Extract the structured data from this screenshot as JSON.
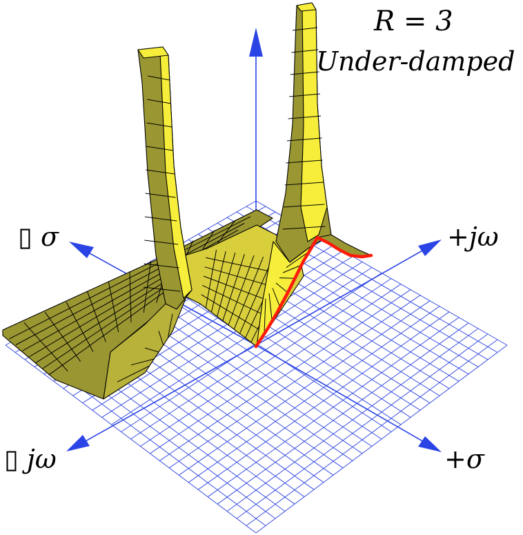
{
  "figure": {
    "title_line1": "R = 3",
    "title_line2": "Under-damped",
    "axis_labels": {
      "neg_sigma": "▯ σ",
      "pos_jomega": "+jω",
      "neg_jomega": "▯ jω",
      "pos_sigma": "+σ"
    }
  },
  "colors": {
    "grid": "#3a4fe0",
    "axis": "#2a44e6",
    "surface_light": "#f6ee3a",
    "surface_dark": "#9a9632",
    "edge": "#000000",
    "cut_line": "#ff1a0a"
  }
}
